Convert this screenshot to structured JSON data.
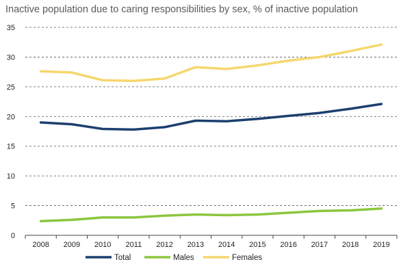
{
  "chart_data": {
    "type": "line",
    "subtitle": "Inactive population due to caring responsibilities by sex, % of inactive population",
    "categories": [
      "2008",
      "2009",
      "2010",
      "2011",
      "2012",
      "2013",
      "2014",
      "2015",
      "2016",
      "2017",
      "2018",
      "2019"
    ],
    "y_ticks": [
      "0",
      "5",
      "10",
      "15",
      "20",
      "25",
      "30",
      "35"
    ],
    "ylim": [
      0,
      35
    ],
    "grid": "horizontal-dashed",
    "legend_position": "bottom",
    "series": [
      {
        "name": "Total",
        "color": "#1c3f6e",
        "values": [
          19.0,
          18.7,
          17.9,
          17.8,
          18.2,
          19.3,
          19.2,
          19.6,
          20.1,
          20.6,
          21.3,
          22.1
        ]
      },
      {
        "name": "Males",
        "color": "#8cc63f",
        "values": [
          2.4,
          2.6,
          3.0,
          3.0,
          3.3,
          3.5,
          3.4,
          3.5,
          3.8,
          4.1,
          4.2,
          4.5
        ]
      },
      {
        "name": "Females",
        "color": "#f5d76e",
        "values": [
          27.6,
          27.4,
          26.1,
          26.0,
          26.4,
          28.3,
          28.0,
          28.6,
          29.4,
          30.0,
          31.0,
          32.1
        ]
      }
    ]
  }
}
